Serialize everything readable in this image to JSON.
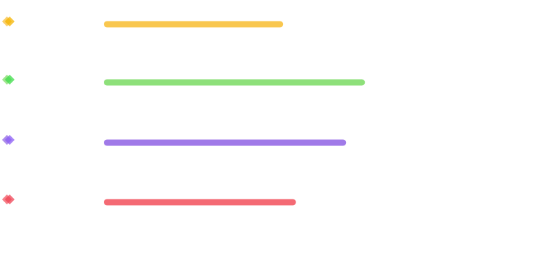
{
  "chart_data": {
    "type": "bar",
    "orientation": "horizontal",
    "categories": [
      "",
      "",
      "",
      ""
    ],
    "values": [
      0.45,
      0.655,
      0.608,
      0.482
    ],
    "xlim": [
      0,
      1
    ],
    "colors": [
      "#f9c74f",
      "#8ee07a",
      "#a07ae8",
      "#f46a74"
    ],
    "icon_accents": [
      "#f4b400",
      "#3ddc4a",
      "#8b5cf6",
      "#ef4455"
    ],
    "icons": [
      "diamond-icon",
      "diamond-icon",
      "diamond-icon",
      "diamond-icon"
    ],
    "grid": false,
    "legend": "none"
  }
}
